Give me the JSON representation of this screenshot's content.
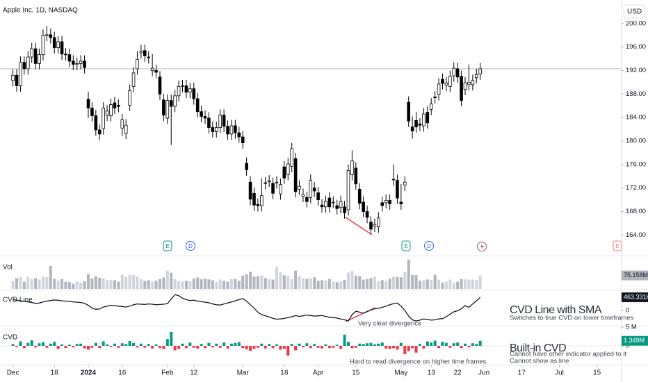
{
  "chart_data": {
    "type": "candlestick",
    "title": "Apple Inc, 1D, NASDAQ",
    "currency": "USD",
    "x": [
      "2023-12-01",
      "2023-12-04",
      "2023-12-05",
      "2023-12-06",
      "2023-12-07",
      "2023-12-08",
      "2023-12-11",
      "2023-12-12",
      "2023-12-13",
      "2023-12-14",
      "2023-12-15",
      "2023-12-18",
      "2023-12-19",
      "2023-12-20",
      "2023-12-21",
      "2023-12-22",
      "2023-12-26",
      "2023-12-27",
      "2023-12-28",
      "2023-12-29",
      "2024-01-02",
      "2024-01-03",
      "2024-01-04",
      "2024-01-05",
      "2024-01-08",
      "2024-01-09",
      "2024-01-10",
      "2024-01-11",
      "2024-01-12",
      "2024-01-16",
      "2024-01-17",
      "2024-01-18",
      "2024-01-19",
      "2024-01-22",
      "2024-01-23",
      "2024-01-24",
      "2024-01-25",
      "2024-01-26",
      "2024-01-29",
      "2024-01-30",
      "2024-01-31",
      "2024-02-01",
      "2024-02-02",
      "2024-02-05",
      "2024-02-06",
      "2024-02-07",
      "2024-02-08",
      "2024-02-09",
      "2024-02-12",
      "2024-02-13",
      "2024-02-14",
      "2024-02-15",
      "2024-02-16",
      "2024-02-20",
      "2024-02-21",
      "2024-02-22",
      "2024-02-23",
      "2024-02-26",
      "2024-02-27",
      "2024-02-28",
      "2024-02-29",
      "2024-03-01",
      "2024-03-04",
      "2024-03-05",
      "2024-03-06",
      "2024-03-07",
      "2024-03-08",
      "2024-03-11",
      "2024-03-12",
      "2024-03-13",
      "2024-03-14",
      "2024-03-15",
      "2024-03-18",
      "2024-03-19",
      "2024-03-20",
      "2024-03-21",
      "2024-03-22",
      "2024-03-25",
      "2024-03-26",
      "2024-03-27",
      "2024-03-28",
      "2024-04-01",
      "2024-04-02",
      "2024-04-03",
      "2024-04-04",
      "2024-04-05",
      "2024-04-08",
      "2024-04-09",
      "2024-04-10",
      "2024-04-11",
      "2024-04-12",
      "2024-04-15",
      "2024-04-16",
      "2024-04-17",
      "2024-04-18",
      "2024-04-19",
      "2024-04-22",
      "2024-04-23",
      "2024-04-24",
      "2024-04-25",
      "2024-04-26",
      "2024-04-29",
      "2024-04-30",
      "2024-05-01",
      "2024-05-02",
      "2024-05-03",
      "2024-05-06",
      "2024-05-07",
      "2024-05-08",
      "2024-05-09",
      "2024-05-10",
      "2024-05-13",
      "2024-05-14",
      "2024-05-15",
      "2024-05-16",
      "2024-05-17",
      "2024-05-20",
      "2024-05-21",
      "2024-05-22",
      "2024-05-23",
      "2024-05-24",
      "2024-05-28",
      "2024-05-29",
      "2024-05-30",
      "2024-05-31"
    ],
    "open": [
      190.3,
      191.2,
      189.4,
      193.4,
      192.3,
      194.3,
      195.7,
      193.2,
      194.7,
      197.96,
      198.1,
      197.6,
      195.9,
      196.9,
      194.8,
      194.7,
      193.6,
      193.05,
      193.2,
      193.6,
      187.1,
      185.6,
      184.3,
      181.9,
      182.1,
      184.4,
      184.3,
      186.5,
      186.1,
      182.2,
      181.3,
      186.1,
      189.3,
      192.3,
      195.0,
      195.4,
      194.3,
      192.0,
      192.0,
      190.9,
      187.0,
      183.9,
      186.9,
      185.9,
      187.7,
      189.3,
      189.4,
      188.3,
      188.9,
      187.2,
      185.0,
      184.2,
      183.9,
      182.3,
      181.6,
      182.3,
      184.4,
      182.5,
      181.2,
      182.6,
      181.4,
      180.7,
      176.2,
      173.0,
      171.1,
      169.2,
      169.0,
      172.9,
      173.2,
      172.8,
      172.9,
      171.0,
      175.6,
      174.3,
      175.7,
      177.0,
      171.8,
      170.6,
      170.4,
      170.4,
      172.0,
      171.2,
      169.1,
      168.8,
      170.3,
      169.6,
      169.0,
      168.7,
      168.8,
      168.3,
      174.3,
      175.4,
      171.8,
      169.6,
      168.0,
      166.2,
      165.5,
      165.4,
      169.5,
      169.5,
      169.9,
      173.4,
      173.3,
      169.6,
      172.5,
      186.6,
      182.4,
      183.5,
      182.9,
      182.6,
      184.9,
      185.4,
      187.5,
      187.9,
      190.5,
      189.5,
      189.3,
      191.1,
      192.3,
      190.98,
      188.8,
      189.6,
      189.6,
      190.8,
      191.4
    ],
    "high": [
      192.2,
      192.2,
      194.4,
      194.4,
      195.3,
      196.7,
      196.7,
      195.7,
      199.0,
      199.6,
      199.1,
      198.6,
      197.9,
      197.9,
      195.8,
      195.7,
      194.6,
      194.2,
      194.6,
      194.6,
      188.4,
      186.6,
      185.3,
      182.8,
      186.6,
      186.1,
      187.2,
      187.5,
      187.1,
      184.6,
      183.7,
      189.6,
      192.6,
      195.3,
      196.4,
      196.4,
      195.3,
      194.8,
      193.0,
      191.9,
      188.0,
      187.9,
      187.9,
      188.7,
      190.3,
      190.4,
      190.4,
      189.9,
      189.9,
      188.2,
      186.0,
      185.2,
      184.9,
      183.3,
      183.3,
      185.4,
      185.4,
      183.5,
      183.6,
      183.6,
      182.4,
      181.7,
      177.2,
      174.0,
      172.1,
      170.2,
      173.7,
      173.9,
      174.2,
      173.8,
      174.0,
      173.6,
      176.6,
      177.1,
      179.7,
      178.0,
      173.3,
      171.9,
      171.4,
      174.3,
      173.0,
      172.2,
      170.1,
      170.7,
      171.3,
      170.6,
      170.0,
      170.7,
      169.8,
      176.0,
      178.4,
      176.4,
      172.8,
      170.6,
      169.0,
      167.2,
      166.8,
      167.9,
      170.5,
      170.9,
      170.9,
      176.0,
      174.3,
      172.7,
      174.0,
      187.6,
      184.2,
      184.9,
      183.9,
      185.6,
      185.9,
      187.3,
      188.5,
      190.7,
      191.5,
      190.9,
      192.0,
      193.4,
      193.3,
      191.98,
      190.9,
      193.0,
      191.3,
      192.3,
      193.3
    ],
    "low": [
      189.3,
      188.4,
      188.4,
      191.3,
      191.3,
      193.3,
      192.2,
      192.2,
      193.7,
      197.0,
      196.6,
      194.9,
      194.9,
      193.8,
      193.7,
      192.6,
      192.05,
      192.05,
      192.2,
      191.5,
      183.9,
      183.3,
      180.9,
      180.2,
      181.1,
      183.4,
      183.3,
      184.6,
      184.9,
      180.9,
      180.3,
      185.1,
      188.3,
      191.3,
      194.0,
      193.5,
      193.2,
      191.0,
      190.7,
      187.0,
      183.4,
      182.9,
      179.3,
      184.9,
      186.7,
      188.3,
      187.3,
      187.3,
      186.2,
      184.0,
      183.2,
      182.9,
      181.3,
      180.6,
      180.6,
      181.3,
      181.5,
      180.2,
      180.2,
      180.4,
      179.7,
      178.7,
      174.1,
      169.1,
      168.1,
      168.0,
      168.0,
      171.8,
      172.2,
      170.1,
      171.9,
      170.0,
      172.7,
      173.3,
      174.7,
      170.4,
      170.8,
      169.6,
      168.7,
      169.4,
      170.5,
      169.0,
      167.8,
      167.8,
      167.8,
      168.6,
      167.5,
      167.7,
      166.8,
      167.3,
      173.3,
      171.7,
      168.4,
      167.0,
      166.0,
      164.1,
      164.5,
      164.4,
      168.0,
      168.5,
      168.3,
      172.4,
      169.3,
      168.3,
      171.5,
      182.4,
      180.4,
      181.4,
      181.7,
      181.6,
      182.1,
      184.4,
      186.4,
      186.9,
      188.8,
      188.5,
      188.3,
      190.1,
      189.9,
      185.9,
      187.8,
      188.6,
      188.6,
      189.8,
      190.4
    ],
    "close": [
      191.2,
      189.4,
      193.4,
      192.3,
      194.3,
      195.7,
      193.2,
      194.7,
      197.96,
      198.1,
      197.6,
      195.9,
      196.9,
      194.8,
      194.7,
      193.6,
      193.05,
      193.2,
      193.6,
      192.5,
      185.6,
      184.3,
      181.9,
      181.2,
      185.6,
      185.1,
      186.2,
      185.6,
      185.9,
      183.6,
      182.7,
      188.6,
      191.6,
      193.9,
      195.2,
      194.5,
      194.2,
      192.4,
      191.7,
      188.0,
      184.4,
      186.9,
      185.9,
      187.7,
      189.3,
      189.4,
      188.3,
      188.9,
      187.2,
      185.0,
      184.2,
      183.9,
      182.3,
      181.6,
      182.3,
      184.4,
      182.5,
      181.2,
      182.6,
      181.4,
      180.7,
      179.7,
      175.1,
      170.1,
      169.1,
      169.0,
      170.7,
      172.8,
      173.2,
      171.1,
      173.0,
      172.6,
      173.7,
      176.1,
      178.7,
      171.4,
      172.3,
      170.9,
      169.7,
      173.3,
      171.5,
      170.0,
      168.8,
      169.7,
      168.8,
      169.6,
      168.5,
      169.7,
      167.8,
      175.0,
      176.6,
      172.7,
      169.4,
      168.0,
      167.0,
      165.0,
      165.8,
      166.9,
      169.0,
      169.9,
      169.3,
      173.5,
      170.3,
      169.3,
      173.0,
      183.4,
      181.7,
      182.4,
      182.7,
      184.6,
      183.1,
      186.3,
      187.4,
      189.7,
      189.8,
      189.9,
      191.0,
      192.4,
      190.9,
      186.9,
      189.9,
      190.0,
      190.3,
      191.3,
      192.3
    ],
    "up_color": "#ffffff",
    "down_color": "#000000",
    "ylim": [
      160.5,
      204
    ],
    "yticks": [
      {
        "value": 164,
        "label": "164.00"
      },
      {
        "value": 168,
        "label": "168.00"
      },
      {
        "value": 172,
        "label": "172.00"
      },
      {
        "value": 176,
        "label": "176.00"
      },
      {
        "value": 180,
        "label": "180.00"
      },
      {
        "value": 184,
        "label": "184.00"
      },
      {
        "value": 188,
        "label": "188.00"
      },
      {
        "value": 192,
        "label": "192.00"
      },
      {
        "value": 196,
        "label": "196.00"
      },
      {
        "value": 200,
        "label": "200.00"
      }
    ],
    "xticks": [
      {
        "value": "2023-12-01",
        "label": "Dec"
      },
      {
        "value": "2023-12-18",
        "label": "18"
      },
      {
        "value": "2024-01-02",
        "label": "2024"
      },
      {
        "value": "2024-01-16",
        "label": "16"
      },
      {
        "value": "2024-02-01",
        "label": "Feb"
      },
      {
        "value": "2024-02-12",
        "label": "12"
      },
      {
        "value": "2024-03-01",
        "label": "Mar"
      },
      {
        "value": "2024-03-18",
        "label": "18"
      },
      {
        "value": "2024-04-01",
        "label": "Apr"
      },
      {
        "value": "2024-04-15",
        "label": "15"
      },
      {
        "value": "2024-05-01",
        "label": "May"
      },
      {
        "value": "2024-05-13",
        "label": "13"
      },
      {
        "value": "2024-05-22",
        "label": "22"
      },
      {
        "value": "2024-06-03",
        "label": "Jun"
      },
      {
        "value": "2024-06-17",
        "label": "17"
      },
      {
        "value": "2024-07-01",
        "label": "Jul"
      },
      {
        "value": "2024-07-15",
        "label": "15"
      }
    ],
    "events": [
      "E",
      "D",
      "E",
      "D",
      "E"
    ],
    "panes": [
      {
        "type": "bar",
        "name": "Vol",
        "up_color": "#d1d4dc",
        "down_color": "#b2b5be",
        "ylim": [
          0,
          170
        ],
        "values": [
          45,
          60,
          66,
          41,
          66,
          55,
          60,
          52,
          70,
          66,
          128,
          55,
          47,
          55,
          40,
          38,
          29,
          42,
          34,
          42,
          82,
          58,
          71,
          62,
          59,
          49,
          49,
          49,
          41,
          79,
          68,
          78,
          77,
          69,
          54,
          44,
          48,
          40,
          45,
          55,
          64,
          102,
          90,
          55,
          43,
          42,
          45,
          44,
          56,
          64,
          54,
          57,
          53,
          48,
          40,
          52,
          45,
          40,
          55,
          55,
          45,
          74,
          82,
          96,
          69,
          71,
          76,
          61,
          54,
          52,
          121,
          95,
          76,
          72,
          54,
          102,
          71,
          58,
          56,
          60,
          65,
          45,
          49,
          47,
          55,
          42,
          37,
          43,
          50,
          91,
          101,
          74,
          71,
          52,
          54,
          61,
          69,
          43,
          49,
          44,
          57,
          68,
          66,
          65,
          94,
          163,
          78,
          77,
          46,
          48,
          53,
          50,
          79,
          52,
          35,
          41,
          52,
          34,
          40,
          55,
          53,
          52,
          53,
          49,
          75.158
        ],
        "value_labels": {
          "124": "75.158M"
        }
      },
      {
        "type": "line",
        "name": "CVD Line",
        "color": "#131722",
        "ylim": [
          -490,
          660
        ],
        "yticks": [
          0
        ],
        "values": [
          390,
          360,
          340,
          320,
          300,
          280,
          250,
          260,
          300,
          330,
          350,
          370,
          360,
          340,
          330,
          320,
          300,
          290,
          280,
          250,
          180,
          80,
          40,
          50,
          120,
          150,
          180,
          170,
          150,
          140,
          120,
          150,
          200,
          230,
          220,
          210,
          230,
          220,
          200,
          210,
          220,
          240,
          400,
          560,
          520,
          430,
          380,
          350,
          360,
          330,
          310,
          290,
          270,
          230,
          200,
          190,
          230,
          260,
          300,
          340,
          380,
          415,
          330,
          200,
          80,
          -60,
          -150,
          -190,
          -230,
          -280,
          -310,
          -300,
          -280,
          -250,
          -220,
          -180,
          -210,
          -190,
          -160,
          -180,
          -200,
          -190,
          -180,
          -210,
          -240,
          -250,
          -270,
          -300,
          -330,
          -366,
          -150,
          -30,
          -60,
          -100,
          -40,
          20,
          60,
          80,
          110,
          150,
          200,
          240,
          260,
          150,
          0,
          -200,
          -330,
          -370,
          -340,
          -300,
          -320,
          -340,
          -330,
          -300,
          -290,
          -220,
          -130,
          -50,
          -10,
          60,
          170,
          110,
          230,
          340,
          463.331
        ],
        "value_labels": {
          "124": "463.331K"
        }
      },
      {
        "type": "bar",
        "name": "CVD",
        "up_color": "#089981",
        "down_color": "#f23645",
        "ylim": [
          -5,
          5
        ],
        "yticks": [
          {
            "value": 5,
            "label": "5 M"
          },
          0
        ],
        "values": [
          0.5,
          -0.3,
          1.2,
          -0.6,
          0.8,
          1.5,
          -0.4,
          0.7,
          1.0,
          -0.5,
          0.6,
          1.1,
          -0.8,
          0.4,
          -0.6,
          0.3,
          -0.4,
          0.5,
          0.6,
          -0.7,
          -1.0,
          -0.5,
          0.8,
          -0.6,
          1.2,
          0.4,
          -0.3,
          0.6,
          -0.5,
          0.7,
          0.5,
          1.3,
          0.8,
          -0.4,
          0.6,
          -0.5,
          0.5,
          -0.7,
          0.4,
          -0.6,
          -0.8,
          1.8,
          3.7,
          -1.2,
          -0.8,
          0.6,
          -0.6,
          0.9,
          -0.5,
          -0.7,
          0.5,
          -0.6,
          0.8,
          -0.4,
          0.6,
          -0.5,
          0.9,
          -0.7,
          0.6,
          0.8,
          1.0,
          -0.6,
          -0.9,
          -1.3,
          -0.8,
          -0.5,
          0.6,
          -0.7,
          0.5,
          -0.6,
          0.4,
          -1.0,
          -0.8,
          -2.6,
          0.5,
          -1.2,
          0.6,
          -0.4,
          0.7,
          -0.6,
          0.5,
          -0.5,
          -0.7,
          0.4,
          -0.6,
          -0.5,
          0.3,
          -0.8,
          3.0,
          1.1,
          -0.6,
          -0.5,
          0.6,
          0.5,
          0.7,
          0.8,
          0.4,
          0.6,
          0.9,
          -0.7,
          -0.8,
          -0.6,
          -1.0,
          0.8,
          -2.2,
          -1.4,
          -0.6,
          -1.8,
          0.5,
          -0.7,
          1.2,
          0.9,
          1.4,
          -0.6,
          1.1,
          0.8,
          -0.5,
          0.7,
          0.9,
          -0.6,
          0.6,
          -0.4,
          0.7,
          0.5,
          1.349
        ],
        "value_labels": {
          "124": "1.349M"
        }
      }
    ],
    "annotations": [
      "CVD Line with SMA",
      "Switches to true CVD on lower timeframes",
      "Very clear divergence",
      "Hard to read divergence on higher time frames",
      "Built-in CVD",
      "Cannot have other indicator applied to it",
      "Cannot show as line"
    ]
  }
}
